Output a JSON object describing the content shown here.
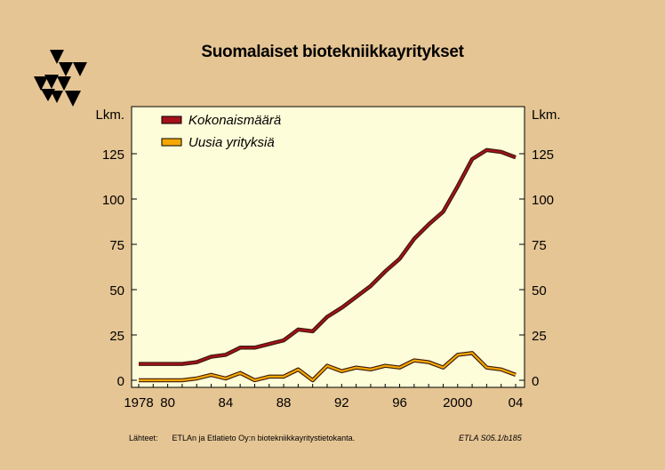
{
  "title": "Suomalaiset biotekniikkayritykset",
  "footer": {
    "source_label": "Lähteet:",
    "source_text": "ETLAn ja Etlatieto Oy:n biotekniikkayritystietokanta.",
    "code": "ETLA S05.1/b185"
  },
  "colors": {
    "background": "#e6c594",
    "plot_area": "#fefdd9",
    "series_total": "#a5111a",
    "series_new": "#f7a800",
    "logo": "#000000"
  },
  "chart_data": {
    "type": "line",
    "title": "Suomalaiset biotekniikkayritykset",
    "ylabel_left": "Lkm.",
    "ylabel_right": "Lkm.",
    "xlim": [
      1978,
      2004
    ],
    "ylim": [
      0,
      140
    ],
    "yticks": [
      0,
      25,
      50,
      75,
      100,
      125
    ],
    "xtick_labels": [
      "1978",
      "80",
      "84",
      "88",
      "92",
      "96",
      "2000",
      "04"
    ],
    "xtick_values": [
      1978,
      1980,
      1984,
      1988,
      1992,
      1996,
      2000,
      2004
    ],
    "grid": false,
    "legend_position": "top-left",
    "x": [
      1978,
      1979,
      1980,
      1981,
      1982,
      1983,
      1984,
      1985,
      1986,
      1987,
      1988,
      1989,
      1990,
      1991,
      1992,
      1993,
      1994,
      1995,
      1996,
      1997,
      1998,
      1999,
      2000,
      2001,
      2002,
      2003,
      2004
    ],
    "series": [
      {
        "name": "Kokonaismäärä",
        "values": [
          9,
          9,
          9,
          9,
          10,
          13,
          14,
          18,
          18,
          20,
          22,
          28,
          27,
          35,
          40,
          46,
          52,
          60,
          67,
          78,
          86,
          93,
          107,
          122,
          127,
          126,
          123
        ]
      },
      {
        "name": "Uusia yrityksiä",
        "values": [
          0,
          0,
          0,
          0,
          1,
          3,
          1,
          4,
          0,
          2,
          2,
          6,
          0,
          8,
          5,
          7,
          6,
          8,
          7,
          11,
          10,
          7,
          14,
          15,
          7,
          6,
          3
        ]
      }
    ]
  }
}
